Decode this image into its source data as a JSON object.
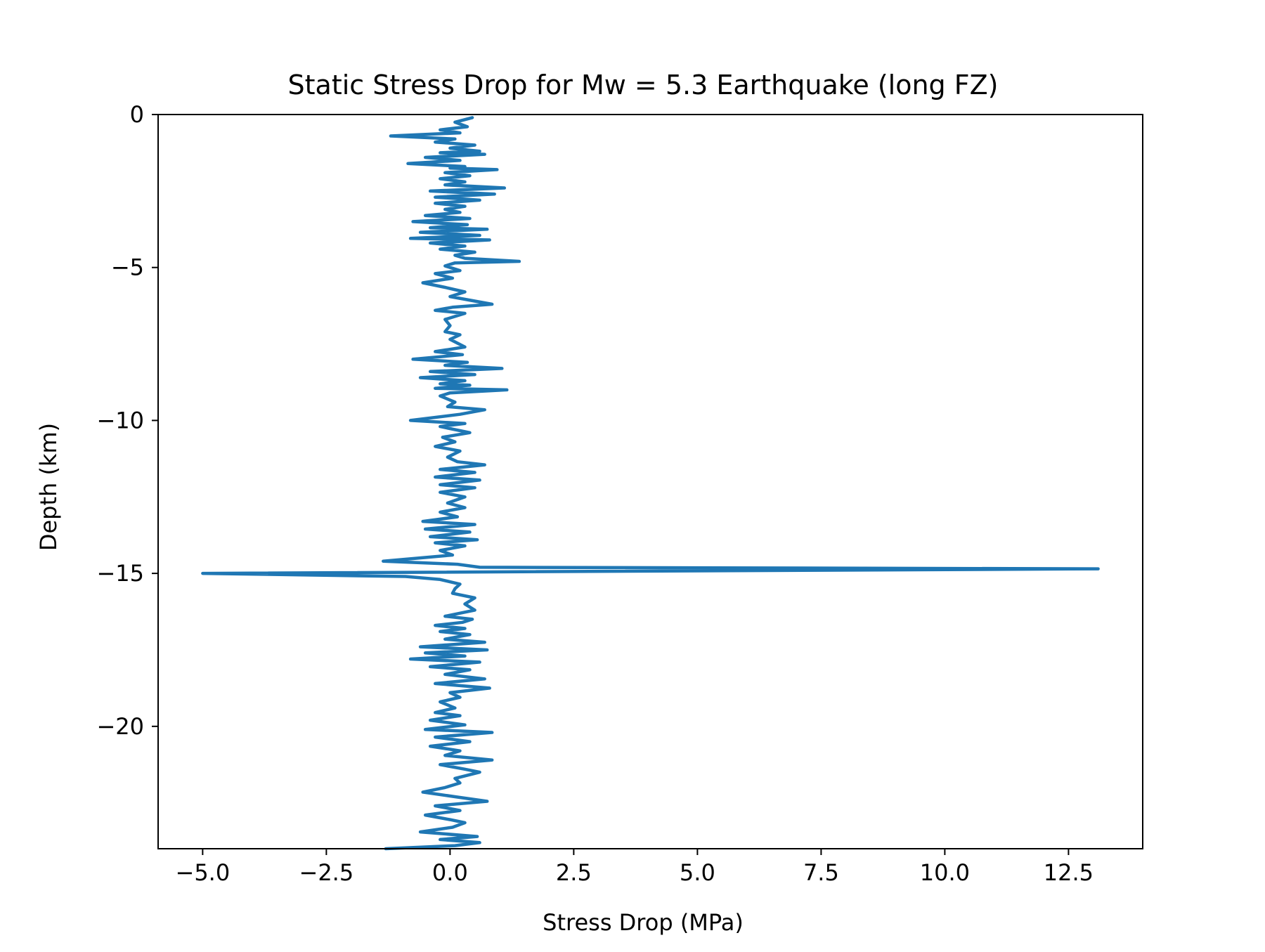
{
  "chart_data": {
    "type": "line",
    "title": "Static Stress Drop for Mw = 5.3 Earthquake (long FZ)",
    "xlabel": "Stress Drop (MPa)",
    "ylabel": "Depth (km)",
    "xlim": [
      -5.9,
      14.0
    ],
    "ylim": [
      -24.0,
      0
    ],
    "x_ticks": [
      -5.0,
      -2.5,
      0.0,
      2.5,
      5.0,
      7.5,
      10.0,
      12.5
    ],
    "x_tick_labels": [
      "−5.0",
      "−2.5",
      "0.0",
      "2.5",
      "5.0",
      "7.5",
      "10.0",
      "12.5"
    ],
    "y_ticks": [
      0,
      -5,
      -10,
      -15,
      -20
    ],
    "y_tick_labels": [
      "0",
      "−5",
      "−10",
      "−15",
      "−20"
    ],
    "grid": false,
    "line_color": "#1f77b4",
    "series": [
      {
        "points": [
          [
            0.45,
            -0.1
          ],
          [
            0.1,
            -0.25
          ],
          [
            0.35,
            -0.4
          ],
          [
            -0.2,
            -0.5
          ],
          [
            0.2,
            -0.6
          ],
          [
            -1.2,
            -0.7
          ],
          [
            0.1,
            -0.8
          ],
          [
            -0.3,
            -0.9
          ],
          [
            0.5,
            -1.0
          ],
          [
            0.0,
            -1.1
          ],
          [
            0.6,
            -1.2
          ],
          [
            -0.2,
            -1.25
          ],
          [
            0.7,
            -1.3
          ],
          [
            -0.5,
            -1.4
          ],
          [
            0.2,
            -1.5
          ],
          [
            -0.85,
            -1.6
          ],
          [
            0.3,
            -1.7
          ],
          [
            0.0,
            -1.75
          ],
          [
            0.95,
            -1.8
          ],
          [
            -0.1,
            -1.9
          ],
          [
            0.4,
            -2.0
          ],
          [
            -0.2,
            -2.1
          ],
          [
            0.3,
            -2.2
          ],
          [
            -0.1,
            -2.3
          ],
          [
            1.1,
            -2.4
          ],
          [
            -0.4,
            -2.5
          ],
          [
            0.9,
            -2.6
          ],
          [
            -0.3,
            -2.7
          ],
          [
            0.6,
            -2.8
          ],
          [
            -0.3,
            -2.9
          ],
          [
            0.3,
            -3.0
          ],
          [
            -0.1,
            -3.1
          ],
          [
            0.2,
            -3.2
          ],
          [
            -0.5,
            -3.3
          ],
          [
            0.4,
            -3.4
          ],
          [
            -0.75,
            -3.5
          ],
          [
            0.35,
            -3.6
          ],
          [
            -0.4,
            -3.7
          ],
          [
            0.75,
            -3.75
          ],
          [
            -0.6,
            -3.85
          ],
          [
            0.6,
            -3.95
          ],
          [
            -0.8,
            -4.05
          ],
          [
            0.8,
            -4.1
          ],
          [
            -0.4,
            -4.2
          ],
          [
            0.3,
            -4.3
          ],
          [
            -0.2,
            -4.4
          ],
          [
            0.5,
            -4.5
          ],
          [
            0.1,
            -4.6
          ],
          [
            0.3,
            -4.7
          ],
          [
            1.4,
            -4.8
          ],
          [
            0.1,
            -4.85
          ],
          [
            -0.1,
            -4.95
          ],
          [
            0.2,
            -5.1
          ],
          [
            -0.3,
            -5.2
          ],
          [
            0.05,
            -5.35
          ],
          [
            -0.55,
            -5.5
          ],
          [
            -0.1,
            -5.65
          ],
          [
            0.3,
            -5.8
          ],
          [
            0.0,
            -5.95
          ],
          [
            0.85,
            -6.2
          ],
          [
            0.05,
            -6.3
          ],
          [
            -0.3,
            -6.4
          ],
          [
            0.3,
            -6.5
          ],
          [
            -0.1,
            -6.7
          ],
          [
            0.0,
            -6.9
          ],
          [
            -0.1,
            -7.1
          ],
          [
            0.2,
            -7.2
          ],
          [
            0.0,
            -7.35
          ],
          [
            0.3,
            -7.6
          ],
          [
            -0.3,
            -7.75
          ],
          [
            0.25,
            -7.85
          ],
          [
            -0.75,
            -8.0
          ],
          [
            0.35,
            -8.1
          ],
          [
            -0.1,
            -8.2
          ],
          [
            1.05,
            -8.3
          ],
          [
            -0.4,
            -8.4
          ],
          [
            0.5,
            -8.5
          ],
          [
            -0.6,
            -8.6
          ],
          [
            0.3,
            -8.7
          ],
          [
            -0.2,
            -8.8
          ],
          [
            0.4,
            -8.85
          ],
          [
            -0.3,
            -8.95
          ],
          [
            1.15,
            -9.0
          ],
          [
            0.0,
            -9.1
          ],
          [
            -0.2,
            -9.2
          ],
          [
            0.1,
            -9.4
          ],
          [
            -0.05,
            -9.55
          ],
          [
            0.7,
            -9.65
          ],
          [
            0.2,
            -9.8
          ],
          [
            -0.8,
            -10.0
          ],
          [
            0.3,
            -10.1
          ],
          [
            -0.2,
            -10.2
          ],
          [
            0.4,
            -10.4
          ],
          [
            -0.15,
            -10.55
          ],
          [
            0.1,
            -10.7
          ],
          [
            -0.3,
            -10.85
          ],
          [
            0.2,
            -11.0
          ],
          [
            -0.05,
            -11.2
          ],
          [
            0.15,
            -11.35
          ],
          [
            0.7,
            -11.45
          ],
          [
            -0.2,
            -11.6
          ],
          [
            0.5,
            -11.7
          ],
          [
            -0.3,
            -11.85
          ],
          [
            0.6,
            -11.95
          ],
          [
            -0.2,
            -12.1
          ],
          [
            0.5,
            -12.2
          ],
          [
            -0.2,
            -12.35
          ],
          [
            0.3,
            -12.5
          ],
          [
            -0.05,
            -12.7
          ],
          [
            0.3,
            -12.85
          ],
          [
            -0.2,
            -13.0
          ],
          [
            0.15,
            -13.15
          ],
          [
            -0.55,
            -13.3
          ],
          [
            0.5,
            -13.4
          ],
          [
            -0.5,
            -13.55
          ],
          [
            0.4,
            -13.65
          ],
          [
            -0.4,
            -13.8
          ],
          [
            0.55,
            -13.9
          ],
          [
            -0.3,
            -14.0
          ],
          [
            0.3,
            -14.1
          ],
          [
            -0.2,
            -14.25
          ],
          [
            0.05,
            -14.4
          ],
          [
            -1.35,
            -14.6
          ],
          [
            0.15,
            -14.7
          ],
          [
            0.6,
            -14.8
          ],
          [
            13.1,
            -14.85
          ],
          [
            -5.0,
            -15.0
          ],
          [
            -0.9,
            -15.1
          ],
          [
            -0.2,
            -15.2
          ],
          [
            0.2,
            -15.35
          ],
          [
            0.1,
            -15.5
          ],
          [
            0.05,
            -15.65
          ],
          [
            0.5,
            -15.8
          ],
          [
            0.3,
            -16.0
          ],
          [
            0.5,
            -16.2
          ],
          [
            -0.1,
            -16.4
          ],
          [
            0.45,
            -16.5
          ],
          [
            0.25,
            -16.6
          ],
          [
            -0.3,
            -16.7
          ],
          [
            0.3,
            -16.8
          ],
          [
            -0.2,
            -16.9
          ],
          [
            0.4,
            -17.0
          ],
          [
            -0.1,
            -17.15
          ],
          [
            0.7,
            -17.25
          ],
          [
            -0.6,
            -17.4
          ],
          [
            0.75,
            -17.5
          ],
          [
            -0.5,
            -17.6
          ],
          [
            0.3,
            -17.7
          ],
          [
            -0.8,
            -17.8
          ],
          [
            0.6,
            -17.9
          ],
          [
            -0.4,
            -18.05
          ],
          [
            0.4,
            -18.15
          ],
          [
            -0.1,
            -18.3
          ],
          [
            0.7,
            -18.45
          ],
          [
            -0.3,
            -18.6
          ],
          [
            0.8,
            -18.75
          ],
          [
            0.0,
            -18.9
          ],
          [
            0.2,
            -19.05
          ],
          [
            -0.2,
            -19.2
          ],
          [
            0.1,
            -19.4
          ],
          [
            -0.3,
            -19.55
          ],
          [
            0.2,
            -19.65
          ],
          [
            -0.4,
            -19.8
          ],
          [
            0.3,
            -19.95
          ],
          [
            -0.5,
            -20.1
          ],
          [
            0.85,
            -20.2
          ],
          [
            -0.3,
            -20.35
          ],
          [
            0.4,
            -20.5
          ],
          [
            -0.4,
            -20.65
          ],
          [
            0.2,
            -20.8
          ],
          [
            -0.1,
            -20.95
          ],
          [
            0.85,
            -21.1
          ],
          [
            -0.2,
            -21.25
          ],
          [
            0.3,
            -21.4
          ],
          [
            0.6,
            -21.5
          ],
          [
            0.1,
            -21.7
          ],
          [
            0.2,
            -21.85
          ],
          [
            -0.1,
            -22.0
          ],
          [
            -0.55,
            -22.15
          ],
          [
            0.1,
            -22.3
          ],
          [
            0.75,
            -22.45
          ],
          [
            -0.3,
            -22.6
          ],
          [
            0.2,
            -22.75
          ],
          [
            -0.5,
            -22.9
          ],
          [
            0.0,
            -23.05
          ],
          [
            0.3,
            -23.15
          ],
          [
            0.05,
            -23.3
          ],
          [
            -0.6,
            -23.45
          ],
          [
            0.55,
            -23.6
          ],
          [
            -0.2,
            -23.7
          ],
          [
            0.6,
            -23.8
          ],
          [
            0.1,
            -23.9
          ],
          [
            -1.3,
            -24.0
          ]
        ]
      }
    ]
  }
}
